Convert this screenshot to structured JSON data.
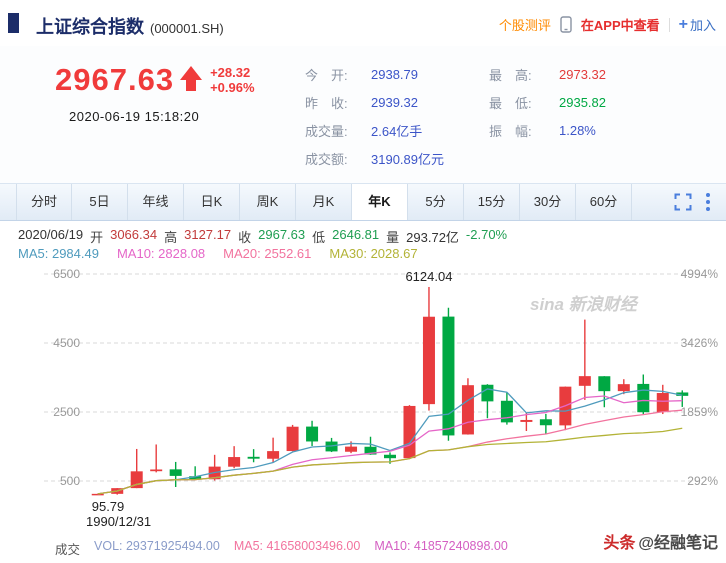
{
  "header": {
    "title": "上证综合指数",
    "code": "(000001.SH)",
    "links": {
      "evaluate": "个股测评",
      "view_in_app": "在APP中查看",
      "join_plus": "+",
      "join": "加入"
    }
  },
  "quote": {
    "price": "2967.63",
    "change": "+28.32",
    "change_percent": "+0.96%",
    "datetime": "2020-06-19 15:18:20",
    "stats_left": [
      {
        "label": "今　开:",
        "value": "2938.79"
      },
      {
        "label": "昨　收:",
        "value": "2939.32"
      },
      {
        "label": "成交量:",
        "value": "2.64亿手"
      },
      {
        "label": "成交额:",
        "value": "3190.89亿元"
      }
    ],
    "stats_right": [
      {
        "label": "最　高:",
        "value": "2973.32"
      },
      {
        "label": "最　低:",
        "value": "2935.82"
      },
      {
        "label": "振　幅:",
        "value": "1.28%"
      }
    ]
  },
  "tabs": {
    "items": [
      "分时",
      "5日",
      "年线",
      "日K",
      "周K",
      "月K",
      "年K",
      "5分",
      "15分",
      "30分",
      "60分"
    ],
    "active": "年K"
  },
  "info_line": {
    "date": "2020/06/19",
    "open_label": "开",
    "open": "3066.34",
    "high_label": "高",
    "high": "3127.17",
    "close_label": "收",
    "close": "2967.63",
    "low_label": "低",
    "low": "2646.81",
    "volume_label": "量",
    "volume": "293.72亿",
    "change_percent": "-2.70%"
  },
  "ma_line": [
    {
      "label": "MA5:",
      "value": "2984.49"
    },
    {
      "label": "MA10:",
      "value": "2828.08"
    },
    {
      "label": "MA20:",
      "value": "2552.61"
    },
    {
      "label": "MA30:",
      "value": "2028.67"
    }
  ],
  "chart_data": {
    "type": "candlestick",
    "title": "上证综合指数 年K线",
    "x_start_label": "1990/12/31",
    "y_ticks": [
      6500,
      4500,
      2500,
      500
    ],
    "y_tick_labels": [
      "6500",
      "4500",
      "2500",
      "500"
    ],
    "right_tick_labels": [
      "4994%",
      "3426%",
      "1859%",
      "292%"
    ],
    "watermark": "sina 新浪财经",
    "up_color": "#e83c3e",
    "down_color": "#00a843",
    "ma_periods": [
      5,
      10,
      20,
      30
    ],
    "ma_colors": [
      "#4f9bbd",
      "#e566c8",
      "#f2739e",
      "#b3b337"
    ],
    "annotations": [
      {
        "text": "6124.04",
        "candle_index": 17,
        "position": "above"
      },
      {
        "text": "95.79",
        "candle_index": 0,
        "position": "below"
      }
    ],
    "candles": [
      {
        "year": "1990",
        "o": 96.05,
        "h": 127.61,
        "l": 95.79,
        "c": 127.61
      },
      {
        "year": "1991",
        "o": 127.61,
        "h": 292.75,
        "l": 104.96,
        "c": 292.75
      },
      {
        "year": "1992",
        "o": 293.74,
        "h": 1429.01,
        "l": 292.76,
        "c": 780.39
      },
      {
        "year": "1993",
        "o": 784.13,
        "h": 1558.95,
        "l": 750.46,
        "c": 833.8
      },
      {
        "year": "1994",
        "o": 837.7,
        "h": 1052.94,
        "l": 325.89,
        "c": 647.87
      },
      {
        "year": "1995",
        "o": 637.72,
        "h": 926.41,
        "l": 524.43,
        "c": 555.29
      },
      {
        "year": "1996",
        "o": 550.26,
        "h": 1258.69,
        "l": 512.83,
        "c": 917.02
      },
      {
        "year": "1997",
        "o": 914.06,
        "h": 1510.18,
        "l": 870.18,
        "c": 1194.1
      },
      {
        "year": "1998",
        "o": 1200.95,
        "h": 1422.98,
        "l": 1043.02,
        "c": 1146.7
      },
      {
        "year": "1999",
        "o": 1144.89,
        "h": 1756.18,
        "l": 1047.83,
        "c": 1366.58
      },
      {
        "year": "2000",
        "o": 1368.69,
        "h": 2125.72,
        "l": 1361.21,
        "c": 2073.48
      },
      {
        "year": "2001",
        "o": 2077.08,
        "h": 2245.44,
        "l": 1514.86,
        "c": 1645.97
      },
      {
        "year": "2002",
        "o": 1643.48,
        "h": 1748.89,
        "l": 1339.2,
        "c": 1357.65
      },
      {
        "year": "2003",
        "o": 1347.72,
        "h": 1649.6,
        "l": 1307.4,
        "c": 1497.04
      },
      {
        "year": "2004",
        "o": 1492.72,
        "h": 1783.01,
        "l": 1259.43,
        "c": 1266.5
      },
      {
        "year": "2005",
        "o": 1260.78,
        "h": 1328.53,
        "l": 998.23,
        "c": 1161.06
      },
      {
        "year": "2006",
        "o": 1163.88,
        "h": 2698.9,
        "l": 1161.91,
        "c": 2675.47
      },
      {
        "year": "2007",
        "o": 2728.19,
        "h": 6124.04,
        "l": 2541.52,
        "c": 5261.56
      },
      {
        "year": "2008",
        "o": 5265.0,
        "h": 5522.78,
        "l": 1664.93,
        "c": 1820.81
      },
      {
        "year": "2009",
        "o": 1849.02,
        "h": 3478.01,
        "l": 1844.09,
        "c": 3277.14
      },
      {
        "year": "2010",
        "o": 3289.75,
        "h": 3306.75,
        "l": 2319.74,
        "c": 2808.08
      },
      {
        "year": "2011",
        "o": 2825.33,
        "h": 3067.46,
        "l": 2134.02,
        "c": 2199.42
      },
      {
        "year": "2012",
        "o": 2212.2,
        "h": 2478.38,
        "l": 1949.46,
        "c": 2269.13
      },
      {
        "year": "2013",
        "o": 2289.51,
        "h": 2444.8,
        "l": 1849.65,
        "c": 2115.98
      },
      {
        "year": "2014",
        "o": 2112.13,
        "h": 3239.36,
        "l": 1974.38,
        "c": 3234.68
      },
      {
        "year": "2015",
        "o": 3258.63,
        "h": 5178.19,
        "l": 2850.71,
        "c": 3539.18
      },
      {
        "year": "2016",
        "o": 3536.59,
        "h": 3538.69,
        "l": 2638.3,
        "c": 3103.64
      },
      {
        "year": "2017",
        "o": 3105.31,
        "h": 3450.5,
        "l": 3016.53,
        "c": 3307.17
      },
      {
        "year": "2018",
        "o": 3314.03,
        "h": 3587.03,
        "l": 2440.91,
        "c": 2493.9
      },
      {
        "year": "2019",
        "o": 2497.88,
        "h": 3288.45,
        "l": 2440.91,
        "c": 3050.12
      },
      {
        "year": "2020",
        "o": 3066.34,
        "h": 3127.17,
        "l": 2646.81,
        "c": 2967.63
      }
    ]
  },
  "volume_footer": {
    "section_label": "成交",
    "vol": "VOL: 29371925494.00",
    "ma5": "MA5: 41658003496.00",
    "ma10": "MA10: 41857240898.00"
  },
  "watermark_bottom_right": {
    "brand": "头条",
    "handle": "@经融笔记"
  }
}
